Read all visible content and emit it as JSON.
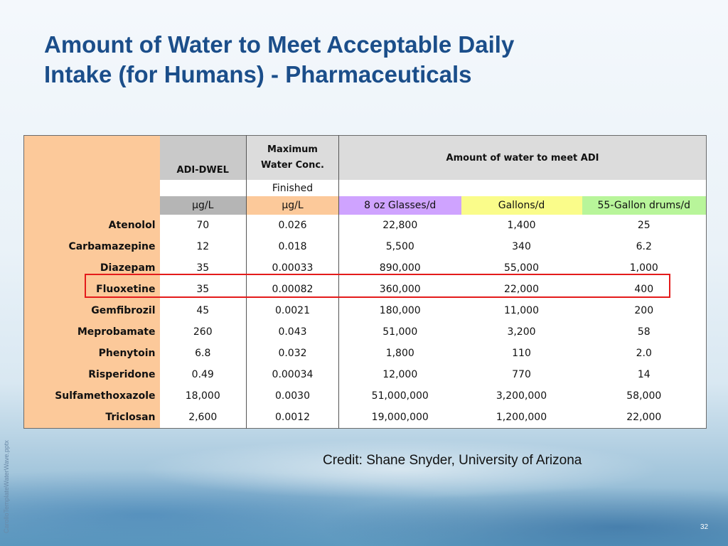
{
  "slide": {
    "title_line1": "Amount of Water to Meet Acceptable Daily",
    "title_line2": "Intake (for Humans) - Pharmaceuticals",
    "credit": "Credit: Shane Snyder, University of Arizona",
    "side_text": "CarolloTemplateWaterWave.pptx",
    "page_number": "32"
  },
  "table": {
    "header": {
      "adi_dwel": "ADI-DWEL",
      "max_conc_line1": "Maximum",
      "max_conc_line2": "Water Conc.",
      "amount_label": "Amount of water to meet ADI",
      "finished": "Finished",
      "unit_adi": "µg/L",
      "unit_conc": "µg/L",
      "glasses": "8 oz Glasses/d",
      "gallons": "Gallons/d",
      "drums": "55-Gallon drums/d"
    },
    "rows": [
      {
        "name": "Atenolol",
        "adi": "70",
        "conc": "0.026",
        "glasses": "22,800",
        "gallons": "1,400",
        "drums": "25"
      },
      {
        "name": "Carbamazepine",
        "adi": "12",
        "conc": "0.018",
        "glasses": "5,500",
        "gallons": "340",
        "drums": "6.2"
      },
      {
        "name": "Diazepam",
        "adi": "35",
        "conc": "0.00033",
        "glasses": "890,000",
        "gallons": "55,000",
        "drums": "1,000"
      },
      {
        "name": "Fluoxetine",
        "adi": "35",
        "conc": "0.00082",
        "glasses": "360,000",
        "gallons": "22,000",
        "drums": "400"
      },
      {
        "name": "Gemfibrozil",
        "adi": "45",
        "conc": "0.0021",
        "glasses": "180,000",
        "gallons": "11,000",
        "drums": "200"
      },
      {
        "name": "Meprobamate",
        "adi": "260",
        "conc": "0.043",
        "glasses": "51,000",
        "gallons": "3,200",
        "drums": "58"
      },
      {
        "name": "Phenytoin",
        "adi": "6.8",
        "conc": "0.032",
        "glasses": "1,800",
        "gallons": "110",
        "drums": "2.0"
      },
      {
        "name": "Risperidone",
        "adi": "0.49",
        "conc": "0.00034",
        "glasses": "12,000",
        "gallons": "770",
        "drums": "14"
      },
      {
        "name": "Sulfamethoxazole",
        "adi": "18,000",
        "conc": "0.0030",
        "glasses": "51,000,000",
        "gallons": "3,200,000",
        "drums": "58,000"
      },
      {
        "name": "Triclosan",
        "adi": "2,600",
        "conc": "0.0012",
        "glasses": "19,000,000",
        "gallons": "1,200,000",
        "drums": "22,000"
      }
    ],
    "highlighted_row": "Fluoxetine"
  },
  "colors": {
    "title": "#1b4e8a",
    "name_column": "#fcc99a",
    "glasses_header": "#cfa3ff",
    "gallons_header": "#fafc8a",
    "drums_header": "#b8f59a",
    "highlight_border": "#e41b1b"
  }
}
